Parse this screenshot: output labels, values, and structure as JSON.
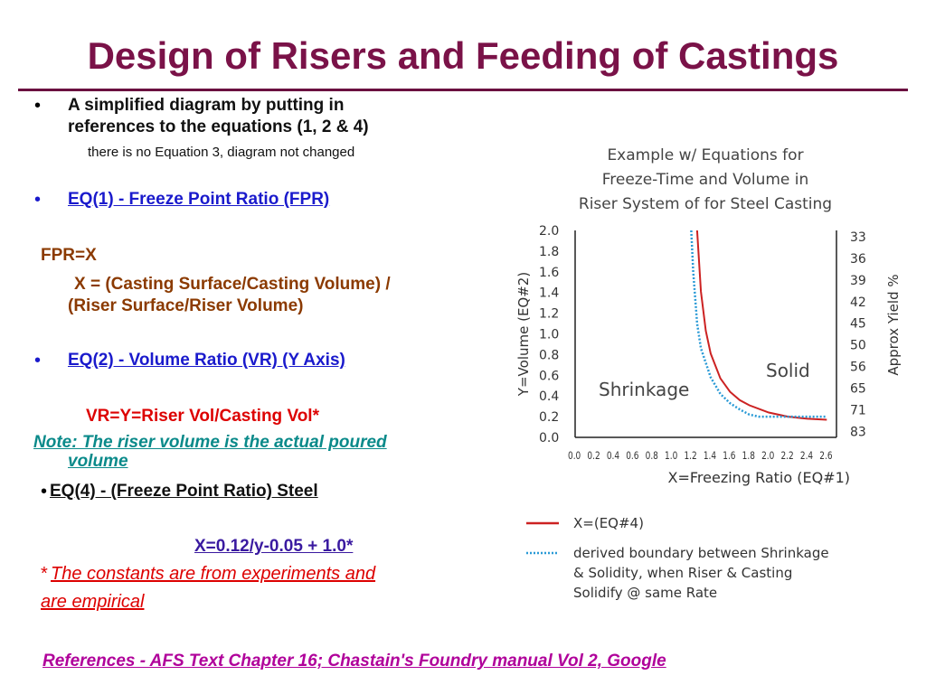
{
  "title": "Design of Risers and Feeding of Castings",
  "left": {
    "bullet1_line1": "A simplified  diagram by putting in",
    "bullet1_line2": "references to the equations (1, 2 & 4)",
    "note_line": "there is no Equation 3, diagram not changed",
    "eq1_heading": "EQ(1) - Freeze Point Ratio (FPR)",
    "fpr_line": "FPR=X",
    "x_def_line1": "X = (Casting Surface/Casting Volume) /",
    "x_def_line2": "(Riser Surface/Riser Volume)",
    "eq2_heading": "EQ(2) - Volume Ratio (VR) (Y Axis)",
    "vr_line": "VR=Y=Riser Vol/Casting Vol*",
    "note2_line1": "Note: The riser volume is the actual poured",
    "note2_line2": "volume",
    "eq4_heading": " EQ(4) - (Freeze Point Ratio) Steel",
    "x_formula": "X=0.12/y-0.05 + 1.0*",
    "asterisk": "*",
    "constants_line1": "The constants are from experiments and",
    "constants_line2": "are empirical",
    "references": "References - AFS Text Chapter 16; Chastain's Foundry manual Vol 2, Google"
  },
  "chart_data": {
    "type": "line",
    "title_lines": [
      "Example w/ Equations for",
      "Freeze-Time and Volume in",
      "Riser System of for Steel Casting"
    ],
    "xlabel": "X=Freezing Ratio (EQ#1)",
    "ylabel": "Y=Volume (EQ#2)",
    "right_axis_label": "Approx Yield %",
    "x_ticks": [
      "0.0",
      "0.2",
      "0.4",
      "0.6",
      "0.8",
      "1.0",
      "1.2",
      "1.4",
      "1.6",
      "1.8",
      "2.0",
      "2.2",
      "2.4",
      "2.6"
    ],
    "y_ticks": [
      "2.0",
      "1.8",
      "1.6",
      "1.4",
      "1.2",
      "1.0",
      "0.8",
      "0.6",
      "0.4",
      "0.2",
      "0.0"
    ],
    "yield_ticks": [
      "33",
      "36",
      "39",
      "42",
      "45",
      "50",
      "56",
      "65",
      "71",
      "83"
    ],
    "xlim": [
      0,
      2.7
    ],
    "ylim": [
      0,
      2.0
    ],
    "region_labels": {
      "left": "Shrinkage",
      "right": "Solid"
    },
    "series": [
      {
        "name": "X=(EQ#4)",
        "color": "#cc2222",
        "dash": "solid",
        "x": [
          1.26,
          1.3,
          1.35,
          1.4,
          1.5,
          1.6,
          1.7,
          1.8,
          2.0,
          2.2,
          2.4,
          2.6
        ],
        "y": [
          2.0,
          1.41,
          1.03,
          0.81,
          0.57,
          0.44,
          0.36,
          0.31,
          0.24,
          0.2,
          0.18,
          0.17
        ]
      },
      {
        "name": "derived boundary between Shrinkage & Solidity, when Riser & Casting Solidify @ same Rate",
        "color": "#2a9ad6",
        "dash": "dotted",
        "x": [
          1.2,
          1.22,
          1.26,
          1.3,
          1.4,
          1.5,
          1.6,
          1.7,
          1.8,
          1.9,
          2.0,
          2.2,
          2.4,
          2.6
        ],
        "y": [
          2.0,
          1.6,
          1.1,
          0.86,
          0.58,
          0.42,
          0.33,
          0.27,
          0.22,
          0.2,
          0.2,
          0.2,
          0.2,
          0.2
        ]
      }
    ],
    "legend": [
      {
        "label_lines": [
          "X=(EQ#4)"
        ],
        "color": "#cc2222",
        "dash": "solid"
      },
      {
        "label_lines": [
          "derived boundary between Shrinkage",
          "& Solidity, when Riser & Casting",
          "Solidify @ same Rate"
        ],
        "color": "#2a9ad6",
        "dash": "dotted"
      }
    ]
  }
}
